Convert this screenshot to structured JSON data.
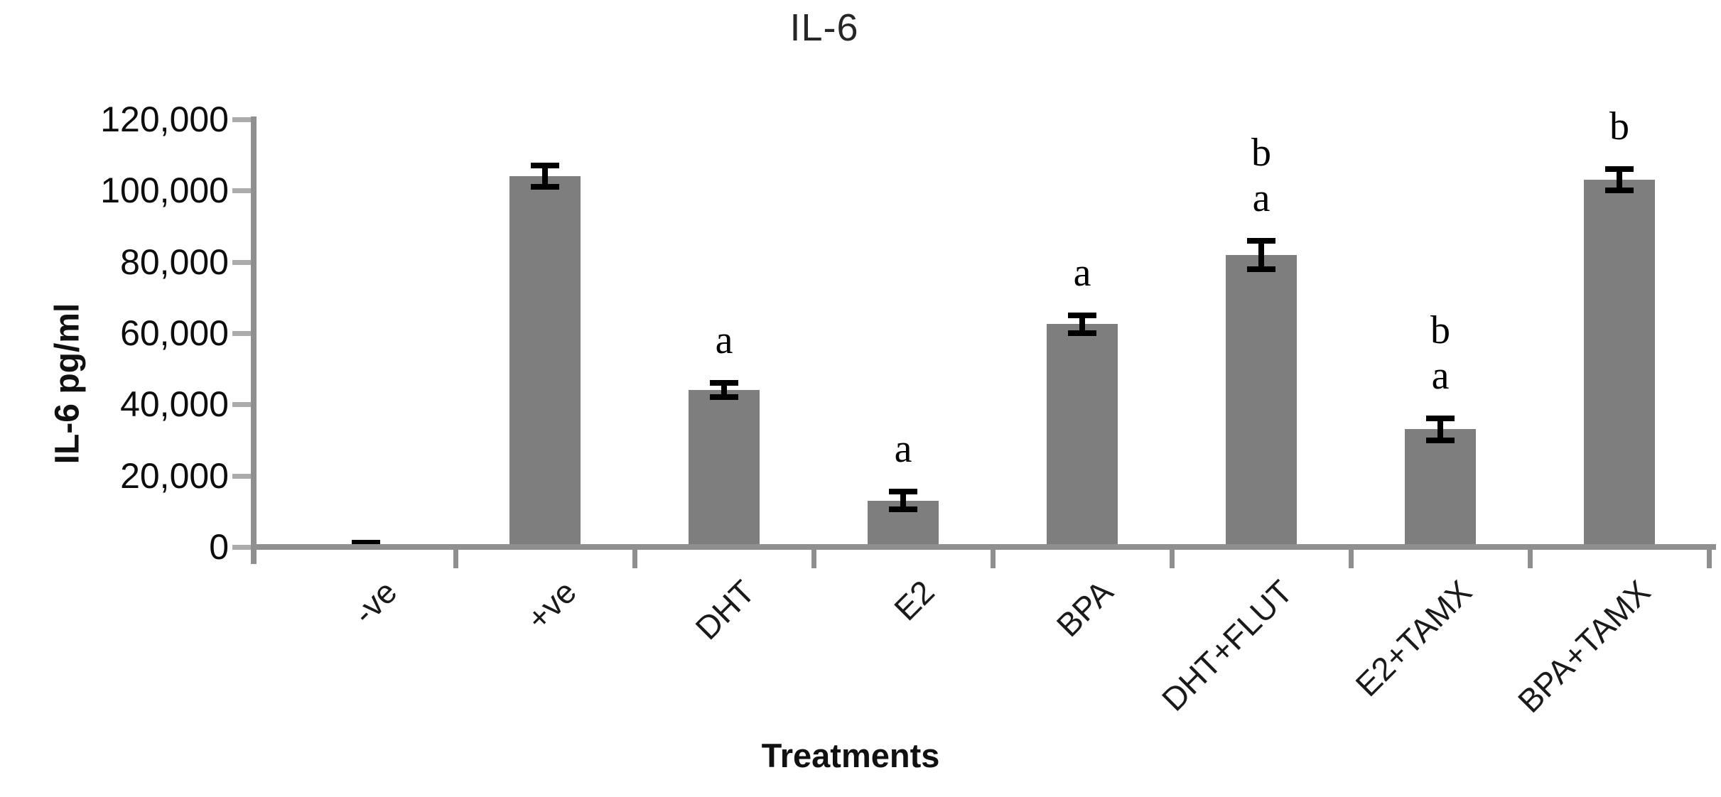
{
  "chart_data": {
    "type": "bar",
    "title": "IL-6",
    "xlabel": "Treatments",
    "ylabel": "IL-6 pg/ml",
    "ylim": [
      0,
      120000
    ],
    "y_tick_interval": 20000,
    "grid": false,
    "legend_position": "none",
    "y_ticks": [
      {
        "value": 0,
        "label": "0"
      },
      {
        "value": 20000,
        "label": "20,000"
      },
      {
        "value": 40000,
        "label": "40,000"
      },
      {
        "value": 60000,
        "label": "60,000"
      },
      {
        "value": 80000,
        "label": "80,000"
      },
      {
        "value": 100000,
        "label": "100,000"
      },
      {
        "value": 120000,
        "label": "120,000"
      }
    ],
    "categories": [
      "-ve",
      "+ve",
      "DHT",
      "E2",
      "BPA",
      "DHT+FLUT",
      "E2+TAMX",
      "BPA+TAMX"
    ],
    "values": [
      500,
      104000,
      44000,
      13000,
      62500,
      82000,
      33000,
      103000
    ],
    "errors": [
      700,
      3000,
      2000,
      2500,
      2500,
      4000,
      3000,
      3000
    ],
    "significance_letters": [
      [],
      [],
      [
        "a"
      ],
      [
        "a"
      ],
      [
        "a"
      ],
      [
        "b",
        "a"
      ],
      [
        "b",
        "a"
      ],
      [
        "b"
      ]
    ],
    "colors": {
      "bar": "#7e7e7e",
      "axis": "#8f8f8f",
      "tick": "#ababab",
      "error": "#000000",
      "text": "#0d0d0d"
    }
  }
}
